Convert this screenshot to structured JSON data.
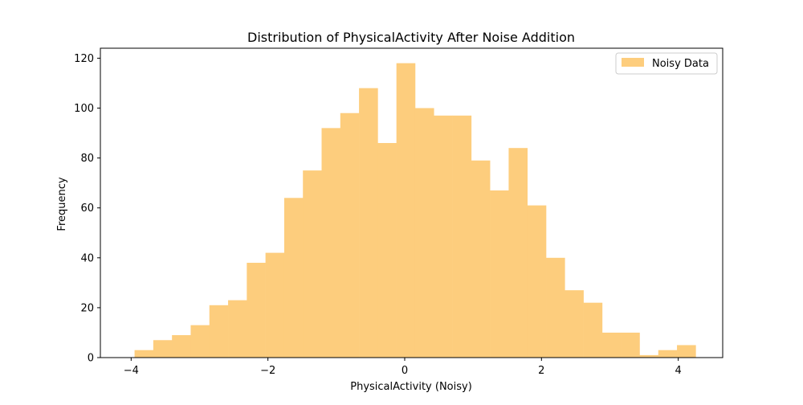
{
  "chart_data": {
    "type": "bar",
    "title": "Distribution of PhysicalActivity After Noise Addition",
    "xlabel": "PhysicalActivity (Noisy)",
    "ylabel": "Frequency",
    "xlim": [
      -4.45,
      4.65
    ],
    "ylim": [
      0,
      124
    ],
    "xticks": [
      -4,
      -2,
      0,
      2,
      4
    ],
    "yticks": [
      0,
      20,
      40,
      60,
      80,
      100,
      120
    ],
    "xtick_labels": [
      "−4",
      "−2",
      "0",
      "2",
      "4"
    ],
    "ytick_labels": [
      "0",
      "20",
      "40",
      "60",
      "80",
      "100",
      "120"
    ],
    "grid": false,
    "legend_position": "top-right",
    "bar_color": "#fdcd7d",
    "bin_width": 0.2735,
    "series": [
      {
        "name": "Noisy Data",
        "bin_starts": [
          -3.95,
          -3.6765,
          -3.403,
          -3.1295,
          -2.856,
          -2.5825,
          -2.309,
          -2.0355,
          -1.762,
          -1.4885,
          -1.215,
          -0.9415,
          -0.668,
          -0.3945,
          -0.121,
          0.1525,
          0.426,
          0.6995,
          0.973,
          1.2465,
          1.52,
          1.7935,
          2.067,
          2.3405,
          2.614,
          2.8875,
          3.161,
          3.4345,
          3.708,
          3.9815
        ],
        "values": [
          3,
          7,
          9,
          13,
          21,
          23,
          38,
          42,
          64,
          75,
          92,
          98,
          108,
          86,
          118,
          100,
          97,
          97,
          79,
          67,
          84,
          61,
          40,
          27,
          22,
          10,
          10,
          1,
          3,
          5
        ]
      }
    ]
  }
}
